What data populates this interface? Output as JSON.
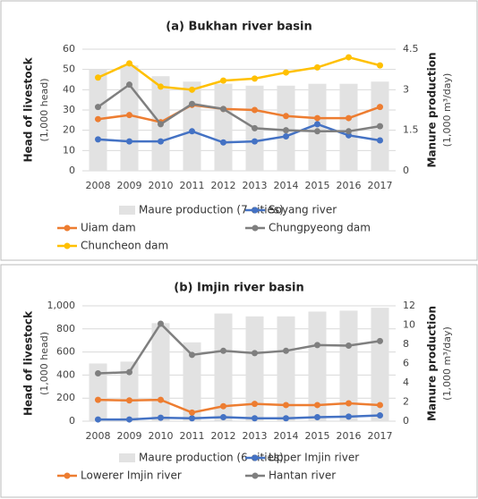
{
  "chart_data": [
    {
      "type": "combo",
      "title": "(a) Bukhan river basin",
      "ylabel": "Head of livestock",
      "ylabel_unit": "(1,000 head)",
      "y2label": "Manure production",
      "y2label_unit": "(1,000 m³/day)",
      "categories": [
        "2008",
        "2009",
        "2010",
        "2011",
        "2012",
        "2013",
        "2014",
        "2015",
        "2016",
        "2017"
      ],
      "ylim": [
        0,
        60
      ],
      "yticks": [
        0,
        10,
        20,
        30,
        40,
        50,
        60
      ],
      "y2lim": [
        0,
        4.5
      ],
      "y2ticks": [
        0,
        1.5,
        3,
        4.5
      ],
      "grid": true,
      "series": [
        {
          "name": "Maure production (7 cities)",
          "type": "bar",
          "axis": "y2",
          "color": "#e2e2e2",
          "values": [
            3.75,
            3.9,
            3.5,
            3.3,
            3.22,
            3.15,
            3.15,
            3.22,
            3.22,
            3.3
          ]
        },
        {
          "name": "Soyang river",
          "type": "line",
          "color": "#4472c4",
          "values": [
            15.5,
            14.5,
            14.5,
            19.5,
            14,
            14.5,
            17,
            23,
            17.5,
            15
          ]
        },
        {
          "name": "Uiam dam",
          "type": "line",
          "color": "#ed7d31",
          "values": [
            25.5,
            27.5,
            24,
            32.5,
            30.5,
            30,
            27,
            26,
            26,
            31.5
          ]
        },
        {
          "name": "Chungpyeong dam",
          "type": "line",
          "color": "#7f7f7f",
          "values": [
            31.5,
            42.5,
            23,
            33,
            30.5,
            21,
            20,
            19.5,
            19.5,
            22
          ]
        },
        {
          "name": "Chuncheon dam",
          "type": "line",
          "color": "#ffc000",
          "values": [
            46,
            53,
            41.5,
            40,
            44.5,
            45.5,
            48.5,
            51,
            56,
            52
          ]
        }
      ]
    },
    {
      "type": "combo",
      "title": "(b) Imjin river basin",
      "ylabel": "Head of livestock",
      "ylabel_unit": "(1,000 head)",
      "y2label": "Manure production",
      "y2label_unit": "(1,000 m³/day)",
      "categories": [
        "2008",
        "2009",
        "2010",
        "2011",
        "2012",
        "2013",
        "2014",
        "2015",
        "2016",
        "2017"
      ],
      "ylim": [
        0,
        1000
      ],
      "yticks": [
        0,
        200,
        400,
        600,
        800,
        {
          "value": 1000,
          "label": "1,000"
        }
      ],
      "y2lim": [
        0,
        12
      ],
      "y2ticks": [
        0,
        2,
        4,
        6,
        8,
        10,
        12
      ],
      "grid": true,
      "series": [
        {
          "name": "Maure production (6 cities)",
          "type": "bar",
          "axis": "y2",
          "color": "#e2e2e2",
          "values": [
            6.0,
            6.2,
            10.2,
            8.2,
            11.2,
            10.9,
            10.9,
            11.4,
            11.5,
            11.8
          ]
        },
        {
          "name": "Upper Imjin river",
          "type": "line",
          "color": "#4472c4",
          "values": [
            15,
            15,
            30,
            25,
            35,
            25,
            25,
            35,
            40,
            50
          ]
        },
        {
          "name": "Lowerer Imjin river",
          "type": "line",
          "color": "#ed7d31",
          "values": [
            185,
            180,
            185,
            75,
            130,
            150,
            140,
            140,
            155,
            140
          ]
        },
        {
          "name": "Hantan river",
          "type": "line",
          "color": "#7f7f7f",
          "values": [
            415,
            425,
            845,
            575,
            610,
            590,
            610,
            660,
            655,
            695
          ]
        }
      ]
    }
  ]
}
